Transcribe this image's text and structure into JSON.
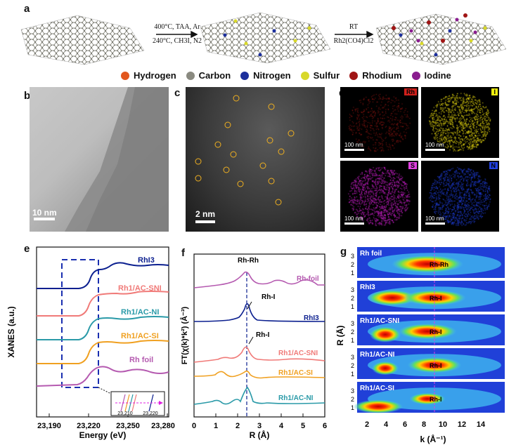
{
  "panels": {
    "a": "a",
    "b": "b",
    "c": "c",
    "d": "d",
    "e": "e",
    "f": "f",
    "g": "g"
  },
  "arrow1": {
    "top": "400°C, TAA, Ar",
    "bottom": "240°C, CH3I, N2"
  },
  "arrow2": {
    "top": "RT",
    "bottom": "Rh2(CO4)Cl2"
  },
  "legend": [
    {
      "label": "Hydrogen",
      "color": "#e2571e"
    },
    {
      "label": "Carbon",
      "color": "#8a8a80"
    },
    {
      "label": "Nitrogen",
      "color": "#1c2f9c"
    },
    {
      "label": "Sulfur",
      "color": "#d8d82a"
    },
    {
      "label": "Rhodium",
      "color": "#a01515"
    },
    {
      "label": "Iodine",
      "color": "#8a1d8f"
    }
  ],
  "scalebars": {
    "b": "10 nm",
    "c": "2 nm",
    "d": "100 nm"
  },
  "eds": [
    {
      "tag": "Rh",
      "color": "#d0201c",
      "tagbg": "#d0201c"
    },
    {
      "tag": "I",
      "color": "#f0e010",
      "tagbg": "#f0f010"
    },
    {
      "tag": "S",
      "color": "#d020d0",
      "tagbg": "#e040e0"
    },
    {
      "tag": "N",
      "color": "#2040e0",
      "tagbg": "#2040e0"
    }
  ],
  "chart_data": [
    {
      "id": "e",
      "type": "line",
      "title": "",
      "xlabel": "Energy (eV)",
      "ylabel": "XANES (a.u.)",
      "xlim": [
        23180,
        23280
      ],
      "xticks": [
        "23,190",
        "23,220",
        "23,250",
        "23,280"
      ],
      "series": [
        {
          "name": "RhI3",
          "color": "#0b1f8f"
        },
        {
          "name": "Rh1/AC-SNI",
          "color": "#f07a78"
        },
        {
          "name": "Rh1/AC-NI",
          "color": "#2a9aa8"
        },
        {
          "name": "Rh1/AC-SI",
          "color": "#f0a020"
        },
        {
          "name": "Rh foil",
          "color": "#b55ab0"
        }
      ],
      "inset_ticks": [
        "23,210",
        "23,220"
      ]
    },
    {
      "id": "f",
      "type": "line",
      "xlabel": "R (Å)",
      "ylabel": "FT(χ(k)*k²) (Å⁻³)",
      "xlim": [
        0,
        6
      ],
      "xticks": [
        "0",
        "1",
        "2",
        "3",
        "4",
        "5",
        "6"
      ],
      "series": [
        {
          "name": "Rh-foil",
          "color": "#b55ab0"
        },
        {
          "name": "RhI3",
          "color": "#0b1f8f"
        },
        {
          "name": "Rh1/AC-SNI",
          "color": "#f07a78"
        },
        {
          "name": "Rh1/AC-SI",
          "color": "#f0a020"
        },
        {
          "name": "Rh1/AC-NI",
          "color": "#2a9aa8"
        }
      ],
      "annotations": [
        "Rh-Rh",
        "Rh-I",
        "Rh-I"
      ]
    },
    {
      "id": "g",
      "type": "heatmap",
      "xlabel": "k (Å⁻¹)",
      "ylabel": "R (Å)",
      "xticks": [
        "2",
        "4",
        "6",
        "8",
        "10",
        "12",
        "14"
      ],
      "yticks": [
        "1",
        "2",
        "3"
      ],
      "rows": [
        {
          "name": "Rh foil",
          "mark": "Rh-Rh"
        },
        {
          "name": "RhI3",
          "mark": "Rh-I"
        },
        {
          "name": "Rh1/AC-SNI",
          "mark": "Rh-I"
        },
        {
          "name": "Rh1/AC-NI",
          "mark": "Rh-I"
        },
        {
          "name": "Rh1/AC-SI",
          "mark": "Rh-I"
        }
      ]
    }
  ]
}
